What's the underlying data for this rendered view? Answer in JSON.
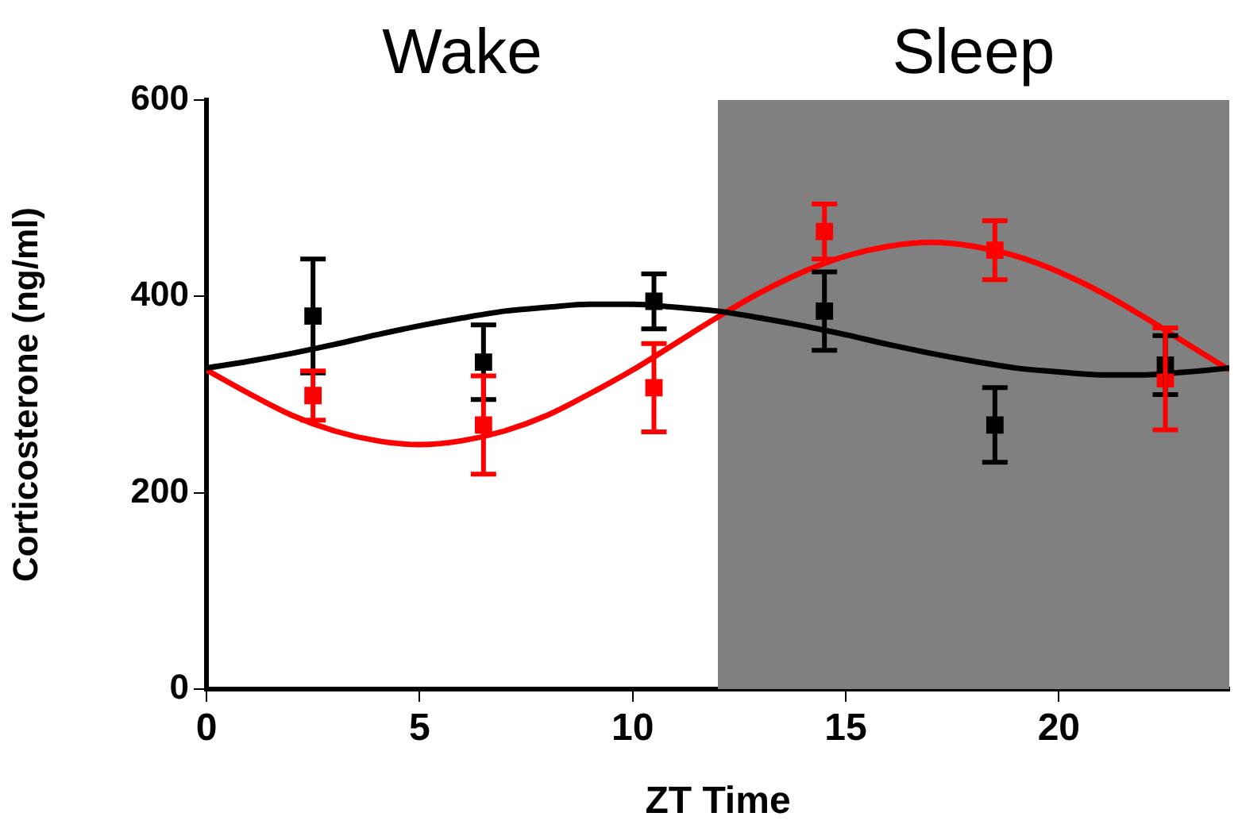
{
  "chart_data": {
    "type": "scatter",
    "xlabel": "ZT Time",
    "ylabel": "Corticosterone (ng/ml)",
    "xlim": [
      0,
      24
    ],
    "ylim": [
      0,
      600
    ],
    "xticks": [
      0,
      5,
      10,
      15,
      20
    ],
    "yticks": [
      0,
      200,
      400,
      600
    ],
    "grid": false,
    "legend": false,
    "marker": "square",
    "bands": [
      {
        "axis": "x",
        "from": 12,
        "to": 24,
        "label": "Sleep",
        "color": "#808080"
      }
    ],
    "annotations": [
      "Wake"
    ],
    "series": [
      {
        "color": "#000000",
        "x": [
          2.5,
          6.5,
          10.5,
          14.5,
          18.5,
          22.5
        ],
        "values": [
          380,
          333,
          395,
          385,
          269,
          330
        ],
        "errors": [
          58,
          38,
          28,
          40,
          38,
          30
        ]
      },
      {
        "color": "#ff0000",
        "x": [
          2.5,
          6.5,
          10.5,
          14.5,
          18.5,
          22.5
        ],
        "values": [
          299,
          269,
          307,
          466,
          447,
          316
        ],
        "errors": [
          25,
          50,
          45,
          28,
          30,
          52
        ]
      },
      {
        "type": "line",
        "color": "#000000",
        "marker": "none",
        "x": [
          0,
          1,
          2,
          3,
          4,
          5,
          6,
          7,
          8,
          9,
          10,
          11,
          12,
          13,
          14,
          15,
          16,
          17,
          18,
          19,
          20,
          21,
          22,
          23,
          24
        ],
        "values": [
          327,
          334,
          342,
          351,
          361,
          370,
          378,
          385,
          389,
          392,
          392,
          389,
          385,
          378,
          370,
          361,
          351,
          342,
          334,
          327,
          323,
          320,
          320,
          323,
          327
        ]
      },
      {
        "type": "line",
        "color": "#ff0000",
        "marker": "none",
        "x": [
          0,
          1,
          2,
          3,
          4,
          5,
          6,
          7,
          8,
          9,
          10,
          11,
          12,
          13,
          14,
          15,
          16,
          17,
          18,
          19,
          20,
          21,
          22,
          23,
          24
        ],
        "values": [
          325,
          301,
          279,
          263,
          253,
          249,
          253,
          263,
          279,
          301,
          325,
          352,
          379,
          404,
          425,
          441,
          451,
          455,
          451,
          441,
          425,
          404,
          379,
          352,
          325
        ]
      }
    ]
  }
}
